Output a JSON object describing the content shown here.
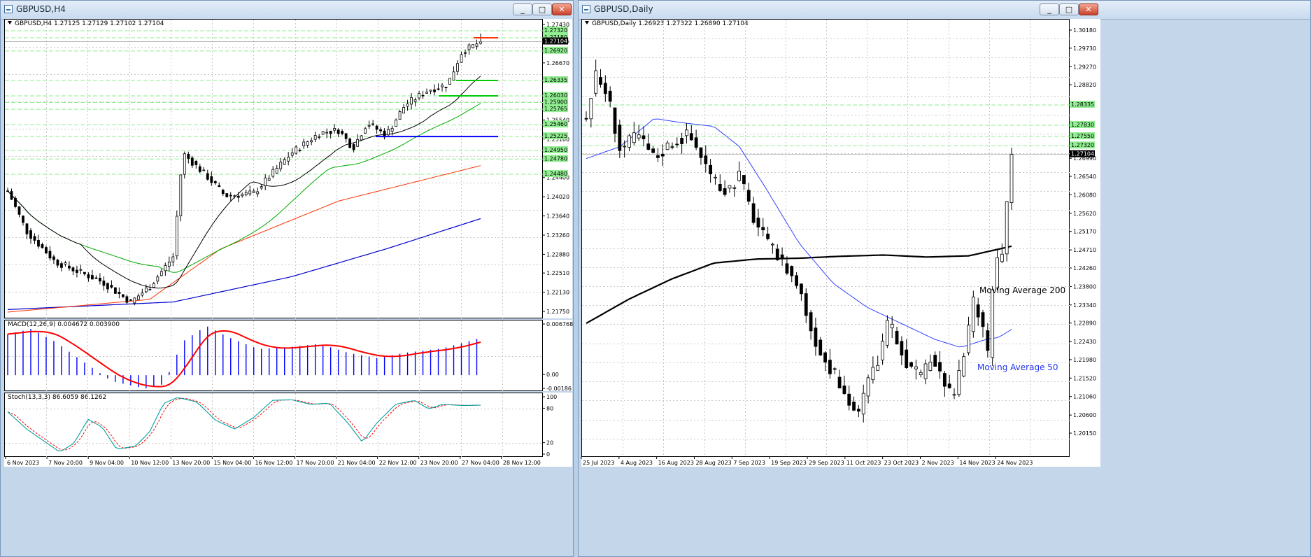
{
  "windows": {
    "h4": {
      "title": "GBPUSD,H4",
      "info": "GBPUSD,H4  1.27125 1.27129 1.27102 1.27104",
      "macd_label": "MACD(12,26,9) 0.004672 0.003900",
      "stoch_label": "Stoch(13,3,3) 86.6059 86.1262",
      "buttons": {
        "minimize": "_",
        "maximize": "□",
        "close": "✕"
      }
    },
    "daily": {
      "title": "GBPUSD,Daily",
      "info": "GBPUSD,Daily  1.26923 1.27322 1.26890 1.27104",
      "buttons": {
        "minimize": "_",
        "maximize": "□",
        "close": "✕"
      }
    }
  },
  "colors": {
    "up_candle": "#ffffff",
    "down_candle": "#000000",
    "ma_black": "#000000",
    "ma_green": "#00aa00",
    "ma_red": "#ff3300",
    "ma_blue": "#0000cc",
    "macd_hist": "#0000ff",
    "macd_signal": "#ff0000",
    "stoch_main": "#00a0a0",
    "stoch_signal": "#ff0000",
    "level_line": "#90ee90",
    "level_green": "#00cc00",
    "level_red": "#ff3300",
    "level_blue": "#0000ff",
    "ma50_daily": "#3344ff",
    "ma200_daily": "#000000"
  },
  "chart_data": [
    {
      "id": "h4_price",
      "type": "candlestick",
      "title": "GBPUSD,H4",
      "ylim": [
        1.2175,
        1.2743
      ],
      "y_ticks": [
        "1.27430",
        "1.27105",
        "1.26670",
        "1.26335",
        "1.26030",
        "1.25765",
        "1.25540",
        "1.25160",
        "1.24950",
        "1.24780",
        "1.24400",
        "1.24020",
        "1.23640",
        "1.23260",
        "1.22880",
        "1.22510",
        "1.22130",
        "1.21750"
      ],
      "x_ticks": [
        "6 Nov 2023",
        "7 Nov 20:00",
        "9 Nov 04:00",
        "10 Nov 12:00",
        "13 Nov 20:00",
        "15 Nov 04:00",
        "16 Nov 12:00",
        "17 Nov 20:00",
        "21 Nov 04:00",
        "22 Nov 12:00",
        "23 Nov 20:00",
        "27 Nov 04:00",
        "28 Nov 12:00"
      ],
      "level_tags": [
        {
          "value": "1.27320",
          "color": "green"
        },
        {
          "value": "1.27180",
          "color": "green"
        },
        {
          "value": "1.27104",
          "color": "black"
        },
        {
          "value": "1.26920",
          "color": "green"
        },
        {
          "value": "1.26335",
          "color": "green"
        },
        {
          "value": "1.26030",
          "color": "green"
        },
        {
          "value": "1.25900",
          "color": "green"
        },
        {
          "value": "1.25765",
          "color": "green"
        },
        {
          "value": "1.25460",
          "color": "green"
        },
        {
          "value": "1.25225",
          "color": "green"
        },
        {
          "value": "1.24950",
          "color": "green"
        },
        {
          "value": "1.24780",
          "color": "green"
        },
        {
          "value": "1.24480",
          "color": "green"
        }
      ],
      "levels": [
        1.2732,
        1.2718,
        1.2692,
        1.26335,
        1.2603,
        1.259,
        1.25765,
        1.2546,
        1.25225,
        1.2495,
        1.2478,
        1.2448
      ],
      "segments": [
        {
          "value": 1.2718,
          "color": "red"
        },
        {
          "value": 1.26335,
          "color": "green"
        },
        {
          "value": 1.2603,
          "color": "green"
        },
        {
          "value": 1.25225,
          "color": "blue"
        }
      ],
      "last_price": 1.27104
    },
    {
      "id": "h4_macd",
      "type": "bar",
      "title": "MACD(12,26,9) 0.004672 0.003900",
      "ylim": [
        -0.00186,
        0.006768
      ],
      "y_ticks": [
        "0.006768",
        "0.00",
        "-0.00186"
      ]
    },
    {
      "id": "h4_stoch",
      "type": "line",
      "title": "Stoch(13,3,3) 86.6059 86.1262",
      "ylim": [
        0,
        100
      ],
      "y_ticks": [
        "100",
        "80",
        "20",
        "0"
      ]
    },
    {
      "id": "daily_price",
      "type": "candlestick",
      "title": "GBPUSD,Daily",
      "ylim": [
        1.2015,
        1.3018
      ],
      "y_ticks": [
        "1.30180",
        "1.29730",
        "1.29270",
        "1.28820",
        "1.28335",
        "1.27830",
        "1.27550",
        "1.27320",
        "1.27104",
        "1.26990",
        "1.26540",
        "1.26080",
        "1.25620",
        "1.25170",
        "1.24710",
        "1.24260",
        "1.23800",
        "1.23340",
        "1.22890",
        "1.22430",
        "1.21980",
        "1.21520",
        "1.21060",
        "1.20600",
        "1.20150"
      ],
      "x_ticks": [
        "25 Jul 2023",
        "4 Aug 2023",
        "16 Aug 2023",
        "28 Aug 2023",
        "7 Sep 2023",
        "19 Sep 2023",
        "29 Sep 2023",
        "11 Oct 2023",
        "23 Oct 2023",
        "2 Nov 2023",
        "14 Nov 2023",
        "24 Nov 2023"
      ],
      "level_tags": [
        {
          "value": "1.28335",
          "color": "green"
        },
        {
          "value": "1.27830",
          "color": "green"
        },
        {
          "value": "1.27550",
          "color": "green"
        },
        {
          "value": "1.27320",
          "color": "green"
        },
        {
          "value": "1.27104",
          "color": "black"
        }
      ],
      "levels": [
        1.28335,
        1.2783,
        1.2755,
        1.2732
      ],
      "annotations": [
        "Moving Average 200",
        "Moving Average 50"
      ],
      "last_price": 1.27104
    }
  ]
}
